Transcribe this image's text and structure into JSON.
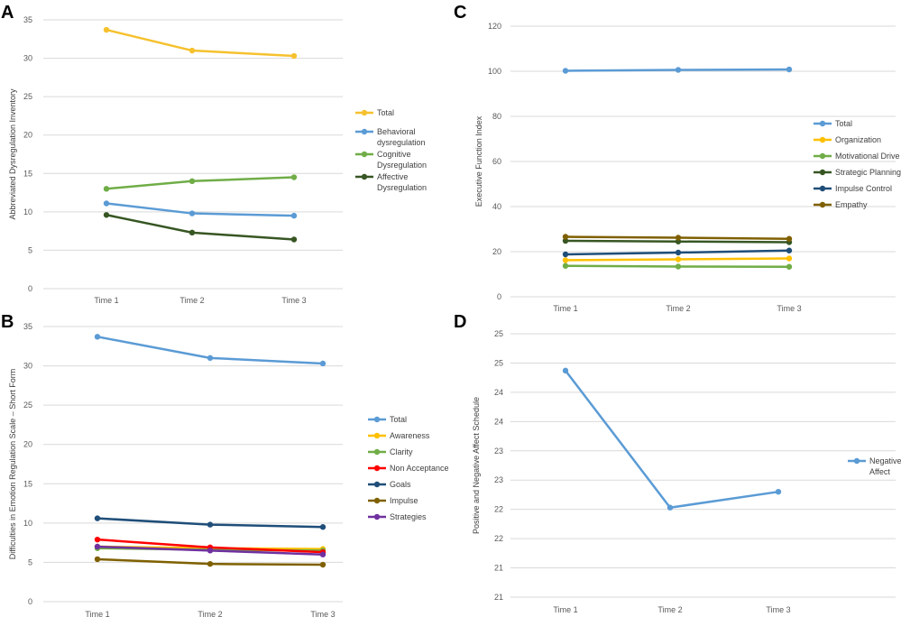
{
  "chart_data": [
    {
      "panel": "A",
      "type": "line",
      "categories": [
        "Time 1",
        "Time 2",
        "Time 3"
      ],
      "ylabel": "Abbreviated Dysregulation Inventory",
      "ylim": [
        0,
        35
      ],
      "yticks": [
        "0",
        "5",
        "10",
        "15",
        "20",
        "25",
        "30",
        "35"
      ],
      "grid": true,
      "legend_position": "right",
      "series": [
        {
          "name": "Total",
          "color": "#f6c12e",
          "values": [
            33.7,
            31.0,
            30.3
          ]
        },
        {
          "name": "Behavioral dysregulation",
          "legend_lines": [
            "Behavioral",
            "dysregulation"
          ],
          "color": "#5b9bd5",
          "values": [
            11.1,
            9.8,
            9.5
          ]
        },
        {
          "name": "Cognitive Dysregulation",
          "legend_lines": [
            "Cognitive",
            "Dysregulation"
          ],
          "color": "#70ad47",
          "values": [
            13.0,
            14.0,
            14.5
          ]
        },
        {
          "name": "Affective Dysregulation",
          "legend_lines": [
            "Affective",
            "Dysregulation"
          ],
          "color": "#375623",
          "values": [
            9.6,
            7.3,
            6.4
          ]
        }
      ]
    },
    {
      "panel": "B",
      "type": "line",
      "categories": [
        "Time 1",
        "Time 2",
        "Time 3"
      ],
      "ylabel": "Difficulties in Emotion Regulation Scale – Short Form",
      "ylim": [
        0,
        35
      ],
      "yticks": [
        "0",
        "5",
        "10",
        "15",
        "20",
        "25",
        "30",
        "35"
      ],
      "grid": true,
      "legend_position": "right",
      "series": [
        {
          "name": "Total",
          "color": "#5b9bd5",
          "values": [
            33.7,
            31.0,
            30.3
          ]
        },
        {
          "name": "Awareness",
          "color": "#ffc000",
          "values": [
            7.0,
            6.8,
            6.7
          ]
        },
        {
          "name": "Clarity",
          "color": "#70ad47",
          "values": [
            6.8,
            6.6,
            6.5
          ]
        },
        {
          "name": "Non Acceptance",
          "color": "#ff0000",
          "values": [
            7.9,
            6.9,
            6.3
          ]
        },
        {
          "name": "Goals",
          "color": "#1f4e79",
          "values": [
            10.6,
            9.8,
            9.5
          ]
        },
        {
          "name": "Impulse",
          "color": "#7f6000",
          "values": [
            5.4,
            4.8,
            4.7
          ]
        },
        {
          "name": "Strategies",
          "color": "#7030a0",
          "values": [
            7.0,
            6.5,
            6.0
          ]
        }
      ]
    },
    {
      "panel": "C",
      "type": "line",
      "categories": [
        "Time 1",
        "Time 2",
        "Time 3"
      ],
      "ylabel": "Executive Function Index",
      "ylim": [
        0,
        120
      ],
      "yticks": [
        "0",
        "20",
        "40",
        "60",
        "80",
        "100",
        "120"
      ],
      "grid": true,
      "legend_position": "right",
      "series": [
        {
          "name": "Total",
          "color": "#5b9bd5",
          "values": [
            100.2,
            100.6,
            100.8
          ]
        },
        {
          "name": "Organization",
          "color": "#ffc000",
          "values": [
            16.2,
            16.6,
            17.0
          ]
        },
        {
          "name": "Motivational Drive",
          "color": "#70ad47",
          "values": [
            13.7,
            13.4,
            13.3
          ]
        },
        {
          "name": "Strategic Planning",
          "color": "#375623",
          "values": [
            24.8,
            24.5,
            24.2
          ]
        },
        {
          "name": "Impulse Control",
          "color": "#1f4e79",
          "values": [
            18.8,
            19.6,
            20.5
          ]
        },
        {
          "name": "Empathy",
          "color": "#7f6000",
          "values": [
            26.6,
            26.2,
            25.7
          ]
        }
      ]
    },
    {
      "panel": "D",
      "type": "line",
      "categories": [
        "Time 1",
        "Time 2",
        "Time 3"
      ],
      "ylabel": "Positive and Negative Affect Schedule",
      "ylim": [
        20.5,
        25.5
      ],
      "yticks": [
        "21",
        "21",
        "22",
        "22",
        "23",
        "23",
        "24",
        "24",
        "25",
        "25"
      ],
      "grid": true,
      "legend_position": "right",
      "series": [
        {
          "name": "Negative Affect",
          "legend_lines": [
            "Negative",
            "Affect"
          ],
          "color": "#5b9bd5",
          "values": [
            24.8,
            22.2,
            22.5
          ]
        }
      ]
    }
  ]
}
